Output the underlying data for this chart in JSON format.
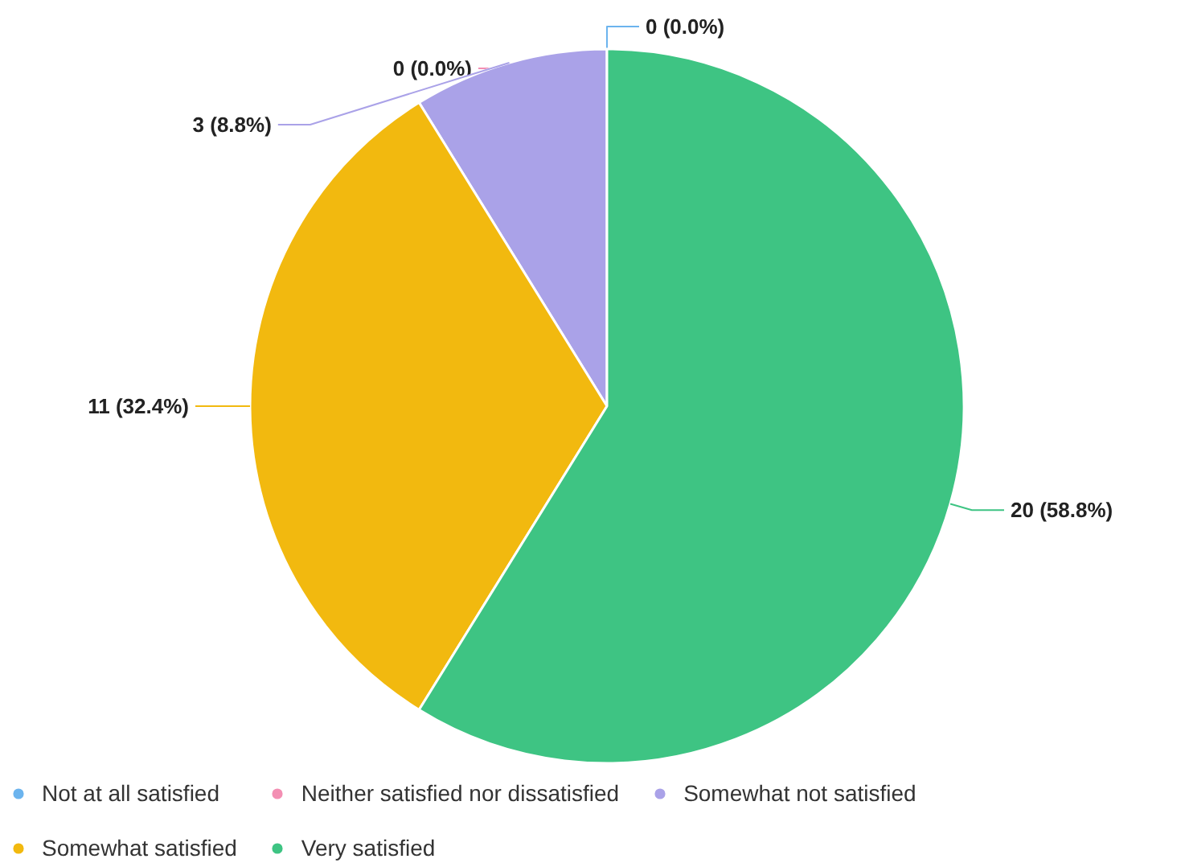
{
  "chart_data": {
    "type": "pie",
    "categories": [
      "Not at all satisfied",
      "Neither satisfied nor dissatisfied",
      "Somewhat not satisfied",
      "Somewhat satisfied",
      "Very satisfied"
    ],
    "values": [
      0,
      0,
      3,
      11,
      20
    ],
    "colors": [
      "#6cb4ee",
      "#f38fb3",
      "#aaa2e8",
      "#f2b90f",
      "#3ec483"
    ],
    "value_labels": [
      "0 (0.0%)",
      "0 (0.0%)",
      "3 (8.8%)",
      "11 (32.4%)",
      "20 (58.8%)"
    ],
    "legend": "bottom"
  }
}
